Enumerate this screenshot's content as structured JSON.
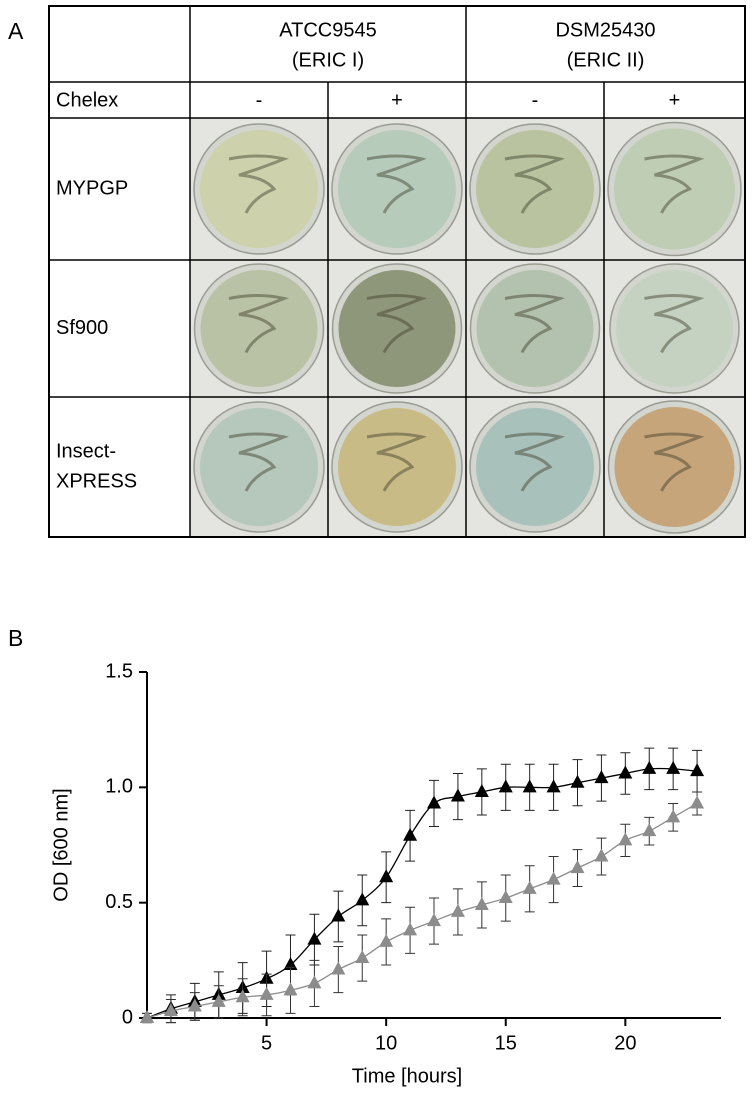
{
  "panel_a": {
    "label": "A",
    "strains": [
      {
        "name": "ATCC9545",
        "group": "(ERIC I)"
      },
      {
        "name": "DSM25430",
        "group": "(ERIC II)"
      }
    ],
    "condition_label": "Chelex",
    "conditions": [
      "-",
      "+",
      "-",
      "+"
    ],
    "media": [
      [
        "MYPGP"
      ],
      [
        "Sf900"
      ],
      [
        "Insect-",
        "XPRESS"
      ]
    ]
  },
  "chart_data": {
    "type": "line",
    "panel_label": "B",
    "x_label": "Time [hours]",
    "y_label": "OD [600 nm]",
    "x": [
      0,
      1,
      2,
      3,
      4,
      5,
      6,
      7,
      8,
      9,
      10,
      11,
      12,
      13,
      14,
      15,
      16,
      17,
      18,
      19,
      20,
      21,
      22,
      23
    ],
    "xlim": [
      0,
      24
    ],
    "xticks": [
      5,
      10,
      15,
      20
    ],
    "ylim": [
      0,
      1.5
    ],
    "yticks": [
      0,
      0.5,
      {
        "value": 1,
        "label": "1.0"
      },
      1.5
    ],
    "series": [
      {
        "color": "#000000",
        "values": [
          0.0,
          0.04,
          0.07,
          0.1,
          0.13,
          0.17,
          0.23,
          0.34,
          0.44,
          0.51,
          0.61,
          0.79,
          0.93,
          0.96,
          0.98,
          1.0,
          1.0,
          1.0,
          1.02,
          1.04,
          1.06,
          1.08,
          1.08,
          1.07
        ],
        "errors": [
          0.02,
          0.06,
          0.08,
          0.1,
          0.11,
          0.12,
          0.13,
          0.11,
          0.11,
          0.11,
          0.11,
          0.11,
          0.1,
          0.1,
          0.1,
          0.1,
          0.1,
          0.1,
          0.1,
          0.1,
          0.09,
          0.09,
          0.09,
          0.09
        ]
      },
      {
        "color": "#8c8c8c",
        "values": [
          0.0,
          0.03,
          0.05,
          0.07,
          0.09,
          0.1,
          0.12,
          0.15,
          0.21,
          0.26,
          0.33,
          0.38,
          0.42,
          0.46,
          0.49,
          0.52,
          0.56,
          0.6,
          0.65,
          0.7,
          0.77,
          0.81,
          0.87,
          0.93
        ],
        "errors": [
          0.02,
          0.05,
          0.06,
          0.07,
          0.08,
          0.09,
          0.1,
          0.1,
          0.1,
          0.1,
          0.1,
          0.1,
          0.1,
          0.1,
          0.1,
          0.1,
          0.1,
          0.1,
          0.08,
          0.08,
          0.07,
          0.06,
          0.06,
          0.05
        ]
      }
    ]
  }
}
